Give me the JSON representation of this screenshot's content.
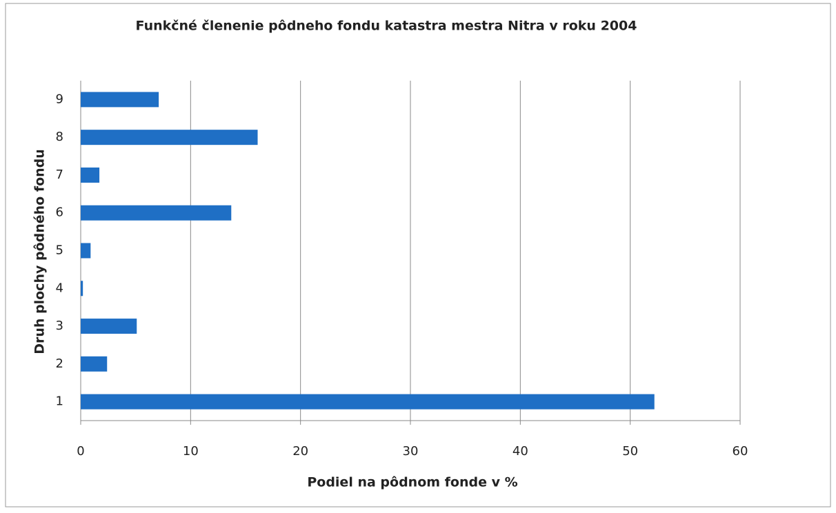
{
  "chart_data": {
    "type": "hbar",
    "title": "Funkčné členenie pôdneho fondu katastra mestra Nitra v roku 2004",
    "xlabel": "Podiel na pôdnom fonde v %",
    "ylabel": "Druh plochy pôdného fondu",
    "categories": [
      "1",
      "2",
      "3",
      "4",
      "5",
      "6",
      "7",
      "8",
      "9"
    ],
    "values": [
      52.2,
      2.4,
      5.1,
      0.2,
      0.9,
      13.7,
      1.7,
      16.1,
      7.1
    ],
    "color": "#1f6fc5",
    "xlim": [
      0,
      60
    ],
    "xticks": [
      0,
      10,
      20,
      30,
      40,
      50,
      60
    ],
    "grid": true
  }
}
